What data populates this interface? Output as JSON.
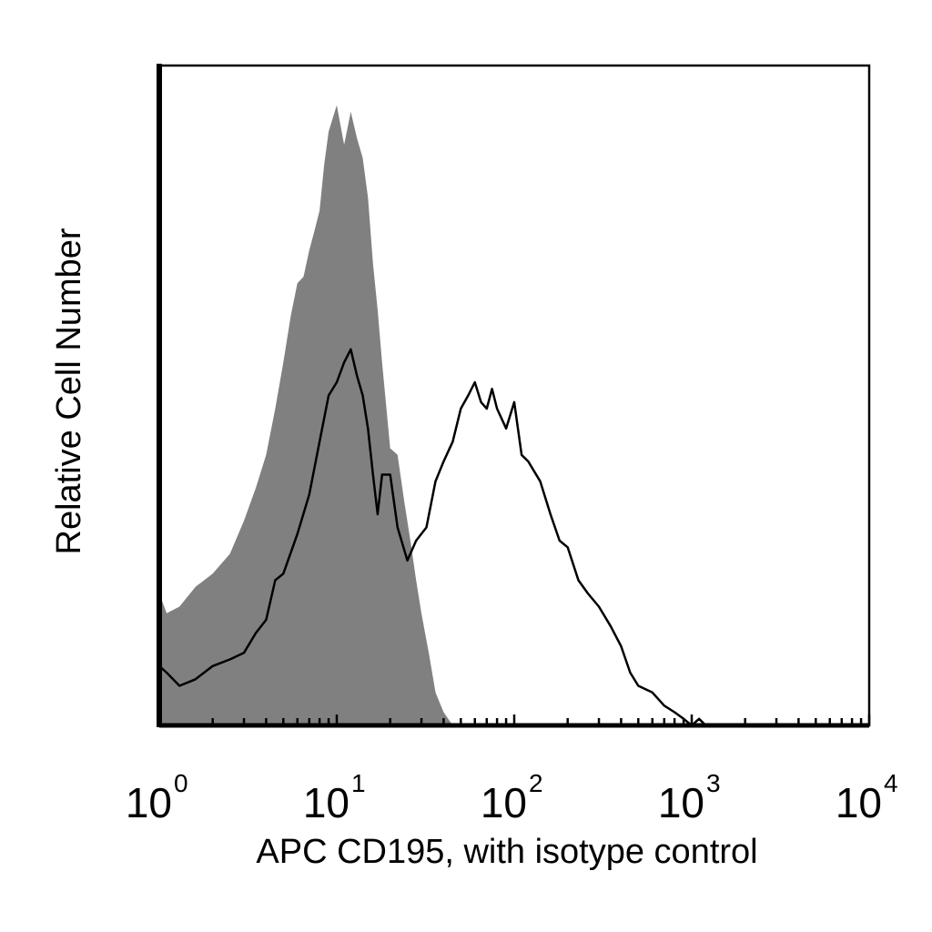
{
  "chart_data": {
    "type": "area",
    "xlabel": "APC CD195, with isotype control",
    "ylabel": "Relative Cell Number",
    "x_scale": "log",
    "xlim": [
      1,
      10000
    ],
    "ylim": [
      0,
      100
    ],
    "x_ticks": [
      {
        "base": "10",
        "exp": "0",
        "value": 1
      },
      {
        "base": "10",
        "exp": "1",
        "value": 10
      },
      {
        "base": "10",
        "exp": "2",
        "value": 100
      },
      {
        "base": "10",
        "exp": "3",
        "value": 1000
      },
      {
        "base": "10",
        "exp": "4",
        "value": 10000
      }
    ],
    "grid": false,
    "series": [
      {
        "style": "filled",
        "color": "#808080",
        "x": [
          1,
          1.1,
          1.3,
          1.6,
          2,
          2.5,
          3,
          3.5,
          4,
          4.5,
          5,
          5.5,
          6,
          6.5,
          7,
          7.5,
          8,
          8.5,
          9,
          10,
          11,
          12,
          13,
          14,
          15,
          16,
          17,
          18,
          20,
          22,
          24,
          26,
          28,
          30,
          33,
          36,
          40,
          45
        ],
        "values": [
          20,
          17,
          18,
          21,
          23,
          26,
          31,
          36,
          41,
          48,
          55,
          62,
          67,
          68,
          72,
          75,
          78,
          85,
          90,
          94,
          88,
          93,
          89,
          86,
          80,
          70,
          63,
          55,
          42,
          41,
          34,
          28,
          22,
          17,
          11,
          5,
          2,
          0
        ]
      },
      {
        "style": "outline",
        "color": "#000000",
        "x": [
          1,
          1.1,
          1.3,
          1.6,
          2,
          2.5,
          3,
          3.5,
          4,
          4.5,
          5,
          6,
          7,
          8,
          9,
          10,
          11,
          12,
          13,
          14,
          15,
          16,
          17,
          18,
          20,
          22,
          25,
          28,
          32,
          36,
          40,
          45,
          50,
          55,
          60,
          65,
          70,
          75,
          80,
          90,
          100,
          110,
          120,
          140,
          160,
          180,
          200,
          230,
          260,
          300,
          350,
          400,
          450,
          500,
          600,
          700,
          800,
          900,
          1000,
          1100,
          1200,
          1300
        ],
        "values": [
          9,
          8,
          6,
          7,
          9,
          10,
          11,
          14,
          16,
          22,
          23,
          29,
          35,
          43,
          50,
          52,
          55,
          57,
          53,
          50,
          45,
          38,
          32,
          38,
          38,
          30,
          25,
          28,
          30,
          37,
          40,
          43,
          48,
          50,
          52,
          49,
          48,
          51,
          48,
          45,
          49,
          41,
          40,
          37,
          32,
          28,
          27,
          22,
          20,
          18,
          15,
          12,
          8,
          6,
          5,
          3,
          2,
          1,
          0,
          1,
          0,
          0
        ]
      }
    ]
  }
}
